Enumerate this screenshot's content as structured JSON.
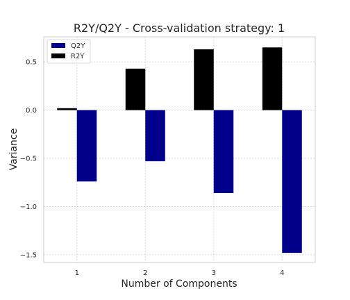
{
  "chart_data": {
    "type": "bar",
    "title": "R2Y/Q2Y - Cross-validation strategy: 1",
    "xlabel": "Number of Components",
    "ylabel": "Variance",
    "categories": [
      "1",
      "2",
      "3",
      "4"
    ],
    "series": [
      {
        "name": "R2Y",
        "values": [
          0.02,
          0.43,
          0.63,
          0.65
        ],
        "color": "#000000"
      },
      {
        "name": "Q2Y",
        "values": [
          -0.74,
          -0.53,
          -0.86,
          -1.48
        ],
        "color": "#00008b"
      }
    ],
    "ylim": [
      -1.58,
      0.76
    ],
    "yticks": [
      -1.5,
      -1.0,
      -0.5,
      0.0,
      0.5
    ],
    "ytick_labels": [
      "−1.5",
      "−1.0",
      "−0.5",
      "0.0",
      "0.5"
    ],
    "grid": true,
    "legend": {
      "placement": "top-left",
      "entries": [
        {
          "name": "Q2Y",
          "color": "#00008b"
        },
        {
          "name": "R2Y",
          "color": "#000000"
        }
      ]
    }
  }
}
